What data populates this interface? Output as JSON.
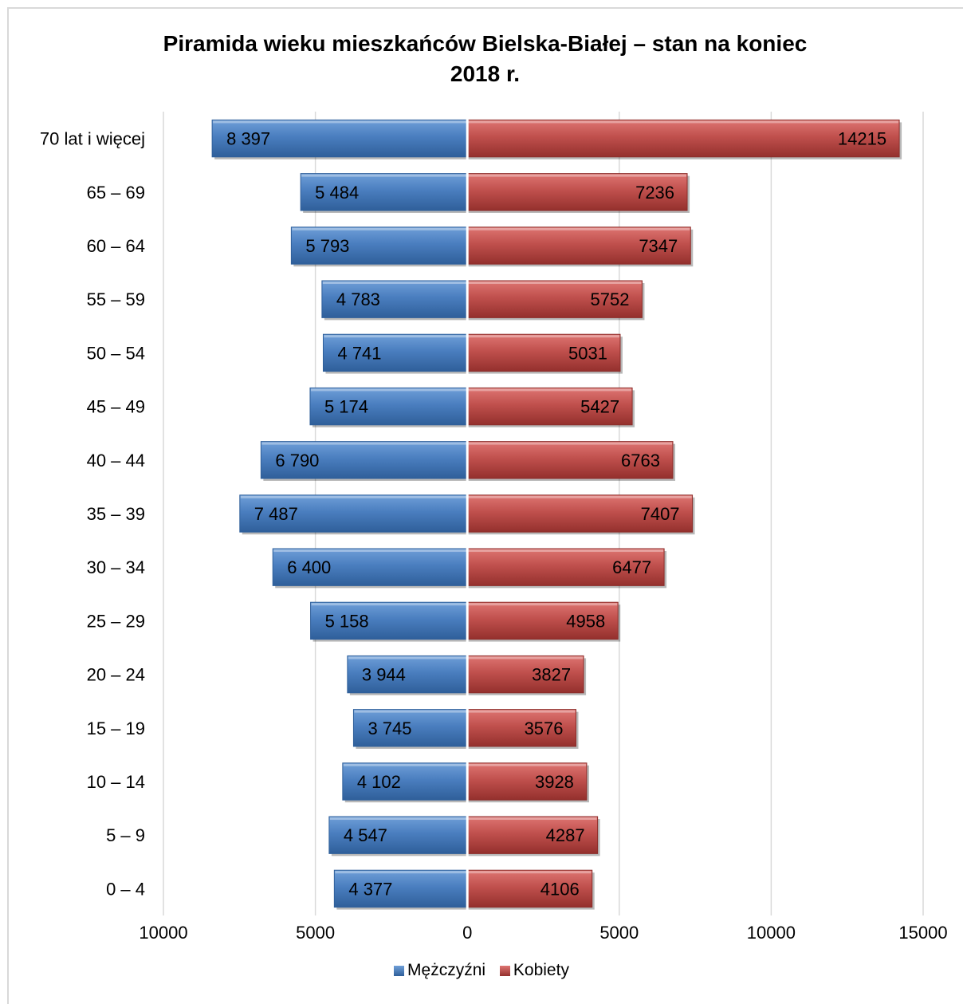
{
  "chart_data": {
    "type": "bar",
    "orientation": "horizontal",
    "title_line1": "Piramida wieku mieszkańców Bielska-Białej – stan na koniec",
    "title_line2": "2018 r.",
    "categories": [
      "70 lat i więcej",
      "65 – 69",
      "60 – 64",
      "55 – 59",
      "50 – 54",
      "45 – 49",
      "40 – 44",
      "35 – 39",
      "30 – 34",
      "25 – 29",
      "20 – 24",
      "15 – 19",
      "10 – 14",
      "5 – 9",
      "0 – 4"
    ],
    "series": [
      {
        "name": "Mężczyźni",
        "color": "#4a7ebf",
        "values": [
          8397,
          5484,
          5793,
          4783,
          4741,
          5174,
          6790,
          7487,
          6400,
          5158,
          3944,
          3745,
          4102,
          4547,
          4377
        ],
        "labels": [
          "8 397",
          "5 484",
          "5 793",
          "4 783",
          "4 741",
          "5 174",
          "6 790",
          "7 487",
          "6 400",
          "5 158",
          "3 944",
          "3 745",
          "4 102",
          "4 547",
          "4 377"
        ]
      },
      {
        "name": "Kobiety",
        "color": "#c0504d",
        "values": [
          14215,
          7236,
          7347,
          5752,
          5031,
          5427,
          6763,
          7407,
          6477,
          4958,
          3827,
          3576,
          3928,
          4287,
          4106
        ],
        "labels": [
          "14215",
          "7236",
          "7347",
          "5752",
          "5031",
          "5427",
          "6763",
          "7407",
          "6477",
          "4958",
          "3827",
          "3576",
          "3928",
          "4287",
          "4106"
        ]
      }
    ],
    "xlim": [
      -10000,
      15000
    ],
    "x_ticks": [
      -10000,
      -5000,
      0,
      5000,
      10000,
      15000
    ],
    "x_tick_labels": [
      "10000",
      "5000",
      "0",
      "5000",
      "10000",
      "15000"
    ],
    "grid": true,
    "legend_position": "bottom"
  }
}
